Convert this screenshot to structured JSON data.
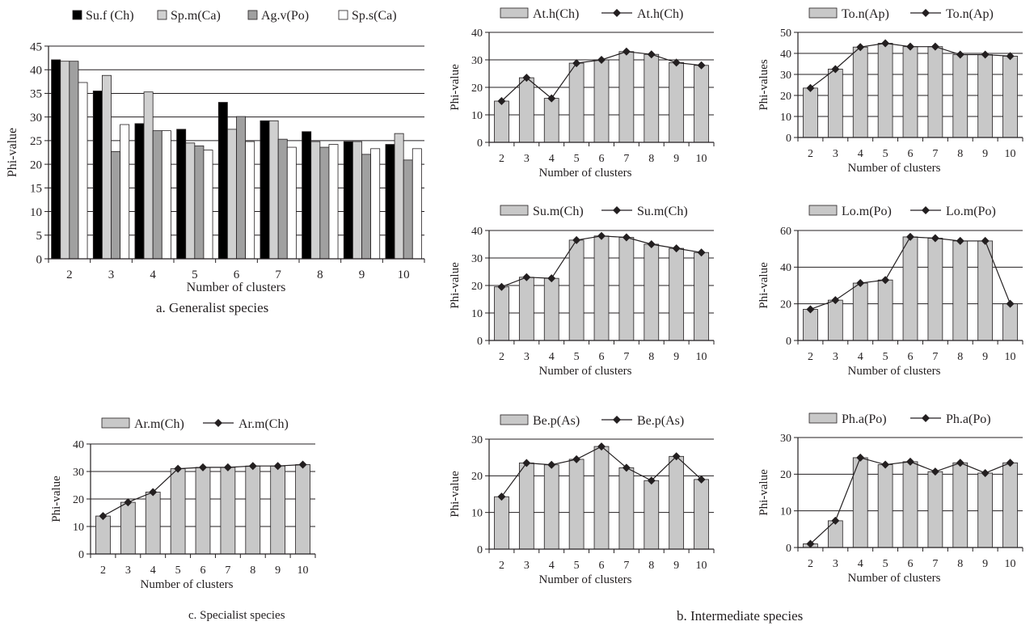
{
  "captions": {
    "a": "a. Generalist species",
    "b": "b. Intermediate species",
    "c": "c. Specialist species"
  },
  "colors": {
    "bar_gray": "#c8c8c8",
    "bar_black": "#000000",
    "bar_light": "#d0d0d0",
    "bar_mid": "#a0a0a0",
    "bar_white": "#ffffff",
    "line": "#231f20",
    "grid": "#231f20"
  },
  "chart_data": [
    {
      "id": "generalist",
      "type": "bar",
      "categories": [
        "2",
        "3",
        "4",
        "5",
        "6",
        "7",
        "8",
        "9",
        "10"
      ],
      "series": [
        {
          "name": "Su.f (Ch)",
          "values": [
            42.1,
            35.5,
            28.6,
            27.4,
            33.1,
            29.2,
            26.9,
            24.8,
            24.2
          ]
        },
        {
          "name": "Sp.m(Ca)",
          "values": [
            41.8,
            38.8,
            35.3,
            24.5,
            27.4,
            29.2,
            24.8,
            24.8,
            26.5
          ]
        },
        {
          "name": "Ag.v(Po)",
          "values": [
            41.8,
            22.7,
            27.1,
            23.9,
            30.1,
            25.3,
            23.6,
            22.1,
            20.9
          ]
        },
        {
          "name": "Sp.s(Ca)",
          "values": [
            37.3,
            28.4,
            27.1,
            23.0,
            24.8,
            23.6,
            24.2,
            23.3,
            23.3
          ]
        }
      ],
      "xlabel": "Number of clusters",
      "ylabel": "Phi-value",
      "ylim": [
        0,
        45
      ],
      "yticks": [
        0,
        5,
        10,
        15,
        20,
        25,
        30,
        35,
        40,
        45
      ],
      "grid": true,
      "legend": "top"
    },
    {
      "id": "ath",
      "type": "bar+line",
      "categories": [
        "2",
        "3",
        "4",
        "5",
        "6",
        "7",
        "8",
        "9",
        "10"
      ],
      "series": [
        {
          "name": "At.h(Ch)",
          "kind": "bar",
          "values": [
            15,
            23.5,
            16,
            28.8,
            30,
            33,
            32,
            29,
            28
          ]
        },
        {
          "name": "At.h(Ch)",
          "kind": "line",
          "values": [
            15,
            23.5,
            16,
            28.8,
            30,
            33,
            32,
            29,
            28
          ]
        }
      ],
      "xlabel": "Number of clusters",
      "ylabel": "Phi-value",
      "ylim": [
        0,
        40
      ],
      "yticks": [
        0,
        10,
        20,
        30,
        40
      ],
      "grid": true,
      "legend": "top"
    },
    {
      "id": "ton",
      "type": "bar+line",
      "categories": [
        "2",
        "3",
        "4",
        "5",
        "6",
        "7",
        "8",
        "9",
        "10"
      ],
      "series": [
        {
          "name": "To.n(Ap)",
          "kind": "bar",
          "values": [
            23.5,
            32.5,
            43,
            44.8,
            43.2,
            43.2,
            39.4,
            39.4,
            38.7
          ]
        },
        {
          "name": "To.n(Ap)",
          "kind": "line",
          "values": [
            23.5,
            32.5,
            43,
            44.8,
            43.2,
            43.2,
            39.4,
            39.4,
            38.7
          ]
        }
      ],
      "xlabel": "Number of clusters",
      "ylabel": "Phi-values",
      "ylim": [
        0,
        50
      ],
      "yticks": [
        0,
        10,
        20,
        30,
        40,
        50
      ],
      "grid": true,
      "legend": "top"
    },
    {
      "id": "sum",
      "type": "bar+line",
      "categories": [
        "2",
        "3",
        "4",
        "5",
        "6",
        "7",
        "8",
        "9",
        "10"
      ],
      "series": [
        {
          "name": "Su.m(Ch)",
          "kind": "bar",
          "values": [
            19.5,
            23,
            22.6,
            36.5,
            38,
            37.5,
            35,
            33.5,
            32
          ]
        },
        {
          "name": "Su.m(Ch)",
          "kind": "line",
          "values": [
            19.5,
            23,
            22.6,
            36.5,
            38,
            37.5,
            35,
            33.5,
            32
          ]
        }
      ],
      "xlabel": "Number of clusters",
      "ylabel": "Phi-value",
      "ylim": [
        0,
        40
      ],
      "yticks": [
        0,
        10,
        20,
        30,
        40
      ],
      "grid": true,
      "legend": "top"
    },
    {
      "id": "lom",
      "type": "bar+line",
      "categories": [
        "2",
        "3",
        "4",
        "5",
        "6",
        "7",
        "8",
        "9",
        "10"
      ],
      "series": [
        {
          "name": "Lo.m(Po)",
          "kind": "bar",
          "values": [
            17,
            22,
            31.3,
            33,
            56.5,
            55.8,
            54.3,
            54.3,
            20
          ]
        },
        {
          "name": "Lo.m(Po)",
          "kind": "line",
          "values": [
            17,
            22,
            31.3,
            33,
            56.5,
            55.8,
            54.3,
            54.3,
            20
          ]
        }
      ],
      "xlabel": "Number of clusters",
      "ylabel": "Phi-value",
      "ylim": [
        0,
        60
      ],
      "yticks": [
        0,
        20,
        40,
        60
      ],
      "grid": true,
      "legend": "top"
    },
    {
      "id": "arm",
      "type": "bar+line",
      "categories": [
        "2",
        "3",
        "4",
        "5",
        "6",
        "7",
        "8",
        "9",
        "10"
      ],
      "series": [
        {
          "name": "Ar.m(Ch)",
          "kind": "bar",
          "values": [
            13.8,
            18.8,
            22.5,
            31,
            31.5,
            31.5,
            32,
            32,
            32.5
          ]
        },
        {
          "name": "Ar.m(Ch)",
          "kind": "line",
          "values": [
            13.8,
            18.8,
            22.5,
            31,
            31.5,
            31.5,
            32,
            32,
            32.5
          ]
        }
      ],
      "xlabel": "Number of clusters",
      "ylabel": "Phi-value",
      "ylim": [
        0,
        40
      ],
      "yticks": [
        0,
        10,
        20,
        30,
        40
      ],
      "grid": true,
      "legend": "top"
    },
    {
      "id": "bep",
      "type": "bar+line",
      "categories": [
        "2",
        "3",
        "4",
        "5",
        "6",
        "7",
        "8",
        "9",
        "10"
      ],
      "series": [
        {
          "name": "Be.p(As)",
          "kind": "bar",
          "values": [
            14.3,
            23.5,
            23,
            24.5,
            28,
            22.2,
            18.7,
            25.3,
            19
          ]
        },
        {
          "name": "Be.p(As)",
          "kind": "line",
          "values": [
            14.3,
            23.5,
            23,
            24.5,
            28,
            22.2,
            18.7,
            25.3,
            19
          ]
        }
      ],
      "xlabel": "Number of clusters",
      "ylabel": "Phi-value",
      "ylim": [
        0,
        30
      ],
      "yticks": [
        0,
        10,
        20,
        30
      ],
      "grid": true,
      "legend": "top"
    },
    {
      "id": "pha",
      "type": "bar+line",
      "categories": [
        "2",
        "3",
        "4",
        "5",
        "6",
        "7",
        "8",
        "9",
        "10"
      ],
      "series": [
        {
          "name": "Ph.a(Po)",
          "kind": "bar",
          "values": [
            1,
            7.3,
            24.5,
            22.6,
            23.4,
            20.7,
            23.1,
            20.3,
            23.1
          ]
        },
        {
          "name": "Ph.a(Po)",
          "kind": "line",
          "values": [
            1,
            7.3,
            24.5,
            22.6,
            23.4,
            20.7,
            23.1,
            20.3,
            23.1
          ]
        }
      ],
      "xlabel": "Number of clusters",
      "ylabel": "Phi-value",
      "ylim": [
        0,
        30
      ],
      "yticks": [
        0,
        10,
        20,
        30
      ],
      "grid": true,
      "legend": "top"
    }
  ]
}
